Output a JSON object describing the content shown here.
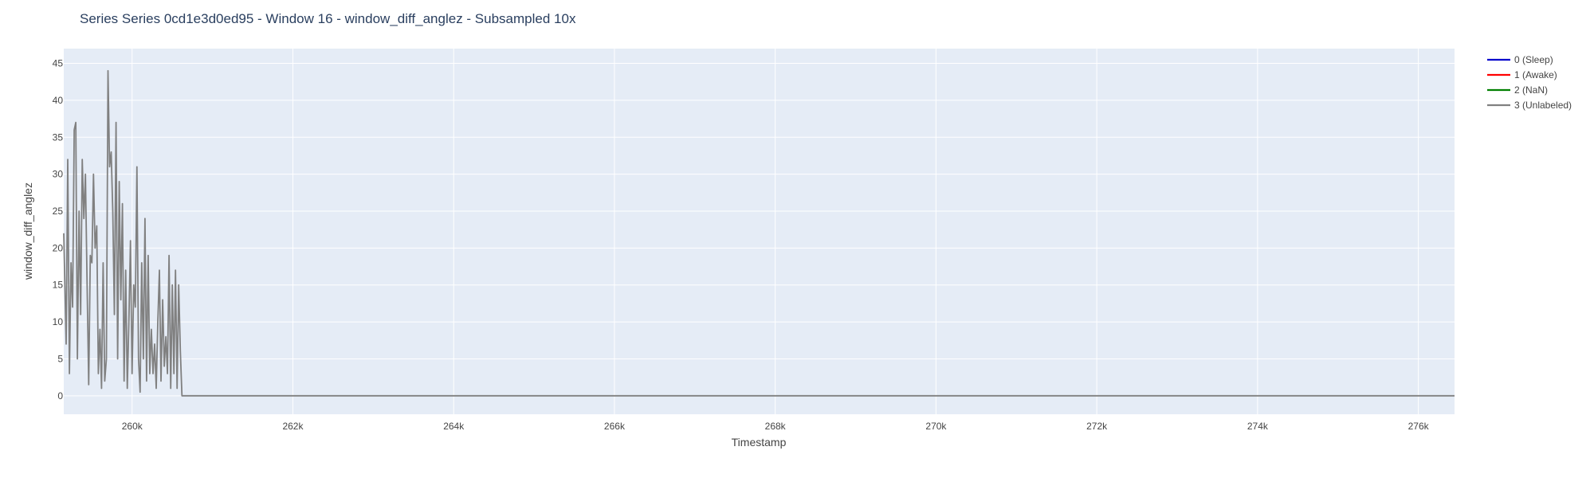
{
  "chart_data": {
    "type": "line",
    "title": "Series Series 0cd1e3d0ed95 - Window 16 - window_diff_anglez - Subsampled 10x",
    "xlabel": "Timestamp",
    "ylabel": "window_diff_anglez",
    "xlim": [
      259150,
      276450
    ],
    "ylim": [
      -2.5,
      47
    ],
    "x_ticks": [
      {
        "value": 260000,
        "label": "260k"
      },
      {
        "value": 262000,
        "label": "262k"
      },
      {
        "value": 264000,
        "label": "264k"
      },
      {
        "value": 266000,
        "label": "266k"
      },
      {
        "value": 268000,
        "label": "268k"
      },
      {
        "value": 270000,
        "label": "270k"
      },
      {
        "value": 272000,
        "label": "272k"
      },
      {
        "value": 274000,
        "label": "274k"
      },
      {
        "value": 276000,
        "label": "276k"
      }
    ],
    "y_ticks": [
      {
        "value": 0,
        "label": "0"
      },
      {
        "value": 5,
        "label": "5"
      },
      {
        "value": 10,
        "label": "10"
      },
      {
        "value": 15,
        "label": "15"
      },
      {
        "value": 20,
        "label": "20"
      },
      {
        "value": 25,
        "label": "25"
      },
      {
        "value": 30,
        "label": "30"
      },
      {
        "value": 35,
        "label": "35"
      },
      {
        "value": 40,
        "label": "40"
      },
      {
        "value": 45,
        "label": "45"
      }
    ],
    "grid": true,
    "legend_position": "top-right",
    "plot_background": "#e5ecf6",
    "series": [
      {
        "name": "0 (Sleep)",
        "color": "#0000cc",
        "x": [],
        "y": []
      },
      {
        "name": "1 (Awake)",
        "color": "#ff0000",
        "x": [],
        "y": []
      },
      {
        "name": "2 (NaN)",
        "color": "#008000",
        "x": [],
        "y": []
      },
      {
        "name": "3 (Unlabeled)",
        "color": "#808080",
        "x": [
          259150,
          259180,
          259200,
          259220,
          259240,
          259260,
          259280,
          259300,
          259320,
          259340,
          259360,
          259380,
          259400,
          259420,
          259440,
          259460,
          259480,
          259500,
          259520,
          259540,
          259560,
          259580,
          259600,
          259620,
          259640,
          259660,
          259680,
          259700,
          259720,
          259740,
          259760,
          259780,
          259800,
          259820,
          259840,
          259860,
          259880,
          259900,
          259920,
          259940,
          259960,
          259980,
          260000,
          260020,
          260040,
          260060,
          260080,
          260100,
          260120,
          260140,
          260160,
          260180,
          260200,
          260220,
          260240,
          260260,
          260280,
          260300,
          260320,
          260340,
          260360,
          260380,
          260400,
          260420,
          260440,
          260460,
          260480,
          260500,
          260520,
          260540,
          260560,
          260580,
          260600,
          260620,
          260650,
          260700,
          276450
        ],
        "y": [
          22,
          7,
          32,
          3,
          18,
          12,
          36,
          37,
          5,
          25,
          11,
          32,
          24,
          30,
          15,
          1.5,
          19,
          18,
          30,
          20,
          23,
          3,
          9,
          1,
          18,
          2,
          5,
          44,
          31,
          33,
          25,
          11,
          37,
          5,
          29,
          13,
          26,
          2,
          17,
          1,
          10,
          21,
          3,
          15,
          12,
          31,
          5,
          0.5,
          18,
          5,
          24,
          2,
          19,
          3,
          9,
          3,
          7,
          1,
          10,
          17,
          2,
          13,
          4,
          8,
          3,
          19,
          1,
          15,
          3,
          17,
          1,
          15,
          6,
          0,
          0,
          0,
          0
        ]
      }
    ]
  }
}
